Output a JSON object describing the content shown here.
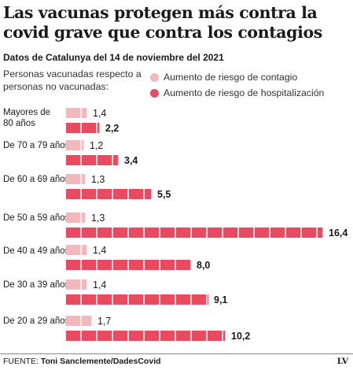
{
  "title": "Las vacunas protegen más contra la covid grave que contra los contagios",
  "subtitle": "Datos de Catalunya del 14 de noviembre del 2021",
  "intro": "Personas vacunadas respecto a personas no vacunadas:",
  "colors": {
    "contagio": "#f2b8bb",
    "hospitalizacion": "#e84b5f"
  },
  "chart_data": {
    "type": "bar",
    "orientation": "horizontal",
    "title": "Las vacunas protegen más contra la covid grave que contra los contagios",
    "subtitle": "Datos de Catalunya del 14 de noviembre del 2021",
    "categories": [
      "Mayores de 80 años",
      "De 70 a 79 años",
      "De 60 a 69 años",
      "De 50 a 59 años",
      "De 40 a 49 años",
      "De 30 a 39 años",
      "De 20 a 29 años"
    ],
    "series": [
      {
        "name": "Aumento de riesgo de contagio",
        "values": [
          1.4,
          1.2,
          1.3,
          1.3,
          1.4,
          1.4,
          1.7
        ]
      },
      {
        "name": "Aumento de riesgo de hospitalización",
        "values": [
          2.2,
          3.4,
          5.5,
          16.4,
          8.0,
          9.1,
          10.2
        ]
      }
    ],
    "value_labels": [
      [
        "1,4",
        "1,2",
        "1,3",
        "1,3",
        "1,4",
        "1,4",
        "1,7"
      ],
      [
        "2,2",
        "3,4",
        "5,5",
        "16,4",
        "8,0",
        "9,1",
        "10,2"
      ]
    ],
    "legend_position": "top-right",
    "grid": false
  },
  "footer": {
    "source_prefix": "FUENTE: ",
    "source": "Toni Sanclemente/DadesCovid",
    "brand": "LV"
  }
}
